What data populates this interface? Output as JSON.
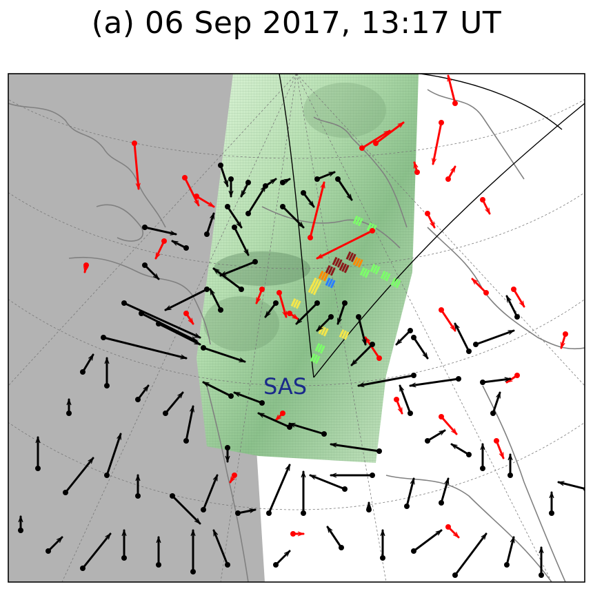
{
  "title": "(a) 06 Sep 2017, 13:17 UT",
  "station_label": "SAS",
  "colors": {
    "night_shade": "#b3b3b3",
    "coast": "#808080",
    "grid": "#777777",
    "fov": "#000000",
    "vector_a": "#000000",
    "vector_b": "#ff0000",
    "station_label": "#1a2a8a",
    "image_light": "#d6f2d2",
    "image_mid": "#a9d6a4",
    "image_dark": "#4f7a55",
    "echo_high": "#8b1a1a",
    "echo_mid": "#ff8a00",
    "echo_low": "#f4e64a",
    "echo_green": "#7cff6a",
    "echo_blue": "#2a7fff"
  }
}
